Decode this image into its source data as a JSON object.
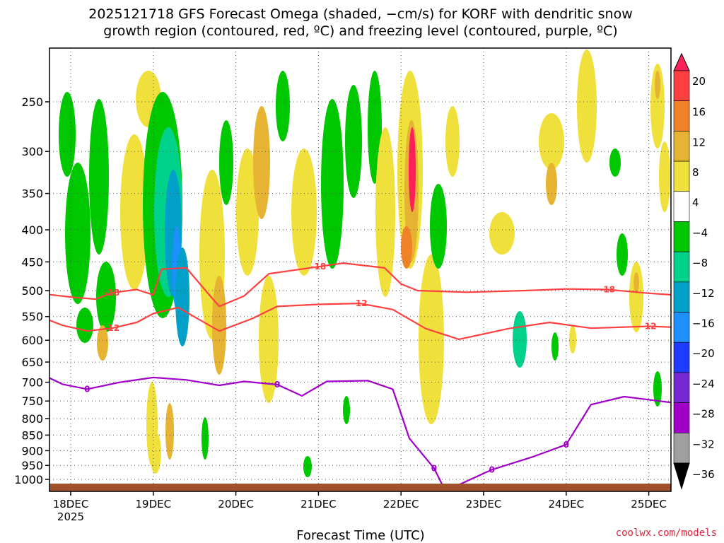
{
  "title_line1": "2025121718 GFS Forecast Omega (shaded, −cm/s) for KORF with dendritic snow",
  "title_line2": "growth region (contoured, red, ºC) and freezing level (contoured, purple, ºC)",
  "credit": "coolwx.com/models",
  "colors": {
    "red_contour": "#ff4040",
    "purple_contour": "#a000c8",
    "ground": "#a0522d"
  },
  "chart_data": {
    "type": "heatmap",
    "xlabel": "Forecast Time (UTC)",
    "ylabel": "",
    "x_ticks": [
      "18DEC",
      "19DEC",
      "20DEC",
      "21DEC",
      "22DEC",
      "23DEC",
      "24DEC",
      "25DEC"
    ],
    "x_tick_sub": "2025",
    "y_ticks": [
      250,
      300,
      350,
      400,
      450,
      500,
      550,
      600,
      650,
      700,
      750,
      800,
      850,
      900,
      950,
      1000
    ],
    "y_axis": "pressure (hPa), log scale, inverted",
    "grid": true,
    "colorbar": {
      "labels": [
        "20",
        "16",
        "12",
        "8",
        "4",
        "−4",
        "−8",
        "−12",
        "−16",
        "−20",
        "−24",
        "−28",
        "−32",
        "−36"
      ],
      "colors": [
        "#ff1f5a",
        "#ff4040",
        "#f08228",
        "#e6b432",
        "#f0e03c",
        "#ffffff",
        "#00c800",
        "#00d28c",
        "#00a0c8",
        "#1e90ff",
        "#1e3cff",
        "#7828d2",
        "#a000c8",
        "#a0a0a0",
        "#000000"
      ]
    },
    "contours": [
      {
        "label": "-18",
        "color": "red",
        "points": [
          [
            17.6,
            505
          ],
          [
            18.0,
            512
          ],
          [
            18.3,
            516
          ],
          [
            18.5,
            504
          ],
          [
            18.8,
            498
          ],
          [
            19.0,
            508
          ],
          [
            19.1,
            462
          ],
          [
            19.4,
            460
          ],
          [
            19.7,
            512
          ],
          [
            19.8,
            530
          ],
          [
            20.1,
            510
          ],
          [
            20.4,
            470
          ],
          [
            21.0,
            458
          ],
          [
            21.3,
            452
          ],
          [
            21.8,
            460
          ],
          [
            22.0,
            488
          ],
          [
            22.2,
            500
          ],
          [
            22.8,
            503
          ],
          [
            23.5,
            500
          ],
          [
            24.0,
            497
          ],
          [
            24.5,
            498
          ],
          [
            25.0,
            505
          ],
          [
            25.3,
            508
          ]
        ]
      },
      {
        "label": "-12",
        "color": "red",
        "points": [
          [
            17.6,
            548
          ],
          [
            17.9,
            568
          ],
          [
            18.2,
            580
          ],
          [
            18.5,
            574
          ],
          [
            18.8,
            562
          ],
          [
            19.0,
            544
          ],
          [
            19.3,
            532
          ],
          [
            19.8,
            580
          ],
          [
            20.2,
            554
          ],
          [
            20.5,
            530
          ],
          [
            21.0,
            526
          ],
          [
            21.5,
            524
          ],
          [
            21.9,
            536
          ],
          [
            22.3,
            575
          ],
          [
            22.7,
            598
          ],
          [
            23.3,
            575
          ],
          [
            23.8,
            562
          ],
          [
            24.3,
            574
          ],
          [
            25.0,
            570
          ],
          [
            25.3,
            572
          ]
        ]
      },
      {
        "label": "0",
        "color": "purple",
        "points": [
          [
            17.6,
            675
          ],
          [
            17.9,
            705
          ],
          [
            18.2,
            718
          ],
          [
            18.6,
            700
          ],
          [
            19.0,
            688
          ],
          [
            19.4,
            694
          ],
          [
            19.8,
            708
          ],
          [
            20.1,
            698
          ],
          [
            20.5,
            706
          ],
          [
            20.8,
            736
          ],
          [
            21.1,
            698
          ],
          [
            21.6,
            696
          ],
          [
            21.9,
            718
          ],
          [
            22.1,
            860
          ],
          [
            22.4,
            960
          ],
          [
            22.5,
            1020
          ]
        ]
      },
      {
        "label": "0",
        "color": "purple",
        "points": [
          [
            22.7,
            1020
          ],
          [
            23.1,
            965
          ],
          [
            23.6,
            920
          ],
          [
            24.0,
            880
          ],
          [
            24.3,
            760
          ],
          [
            24.7,
            738
          ],
          [
            25.3,
            755
          ]
        ]
      }
    ]
  }
}
